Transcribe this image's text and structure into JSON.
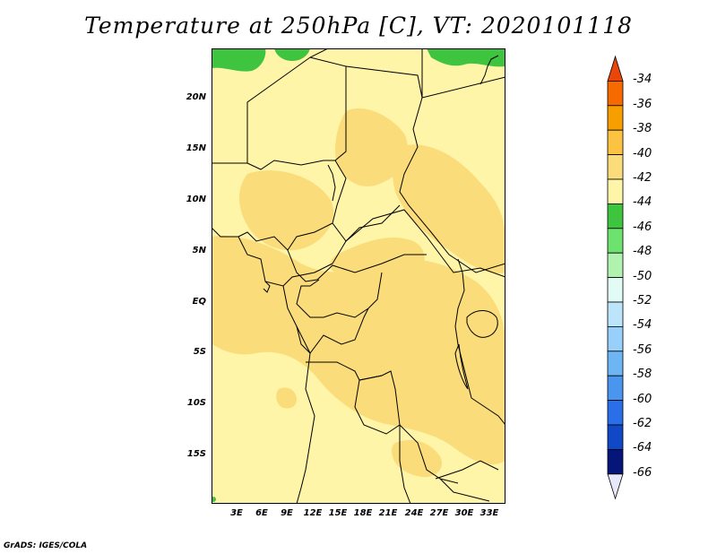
{
  "title": "Temperature at 250hPa [C], VT: 2020101118",
  "footer": "GrADS: IGES/COLA",
  "map": {
    "lat_ticks": [
      "20N",
      "15N",
      "10N",
      "5N",
      "EQ",
      "5S",
      "10S",
      "15S"
    ],
    "lon_ticks": [
      "3E",
      "6E",
      "9E",
      "12E",
      "15E",
      "18E",
      "21E",
      "24E",
      "27E",
      "30E",
      "33E"
    ],
    "colors": {
      "minus40_42": "#fef5a8",
      "minus38_40": "#fbdc7a",
      "minus44_46": "#3ec43e",
      "border": "#000000"
    }
  },
  "colorbar": {
    "labels": [
      "-34",
      "-36",
      "-38",
      "-40",
      "-42",
      "-44",
      "-46",
      "-48",
      "-50",
      "-52",
      "-54",
      "-56",
      "-58",
      "-60",
      "-62",
      "-64",
      "-66"
    ],
    "colors": [
      "#e8460a",
      "#f66a00",
      "#f79f00",
      "#fbc341",
      "#fbdc7a",
      "#fef5a8",
      "#3ec43e",
      "#6ee26e",
      "#b0f2b0",
      "#e2fbf4",
      "#bce5fc",
      "#98d0fb",
      "#6db6f3",
      "#4a96ef",
      "#2b6fe8",
      "#1148c6",
      "#061678",
      "#e8e8fa"
    ]
  }
}
